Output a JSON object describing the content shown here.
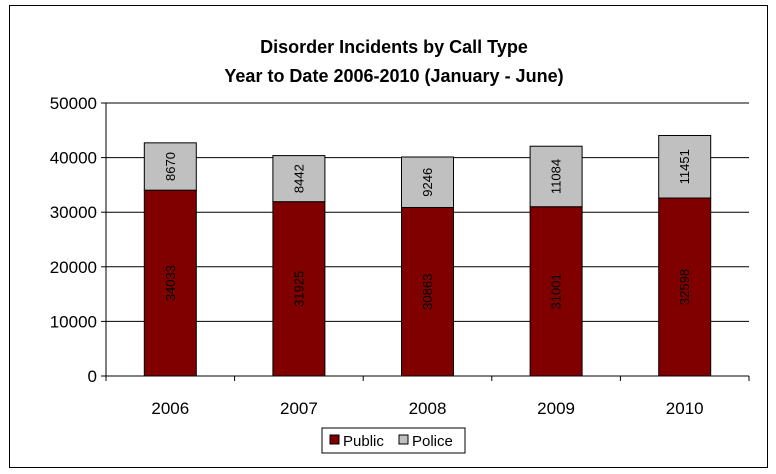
{
  "chart_data": {
    "type": "bar",
    "stacked": true,
    "title": "Disorder Incidents by Call Type",
    "subtitle": "Year to Date 2006-2010 (January - June)",
    "categories": [
      "2006",
      "2007",
      "2008",
      "2009",
      "2010"
    ],
    "series": [
      {
        "name": "Public",
        "values": [
          34033,
          31925,
          30863,
          31001,
          32598
        ],
        "color": "#800000"
      },
      {
        "name": "Police",
        "values": [
          8670,
          8442,
          9246,
          11084,
          11451
        ],
        "color": "#c0c0c0"
      }
    ],
    "ylim": [
      0,
      50000
    ],
    "yticks": [
      "0",
      "10000",
      "20000",
      "30000",
      "40000",
      "50000"
    ],
    "grid": true,
    "legend_position": "bottom"
  }
}
